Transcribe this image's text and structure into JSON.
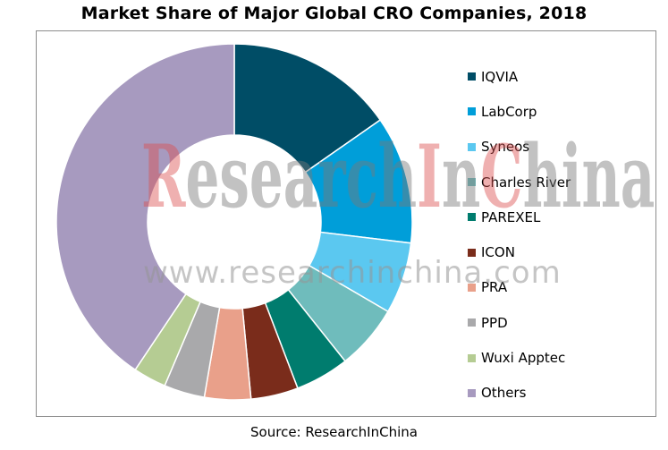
{
  "chart_data": {
    "type": "pie",
    "variant": "donut",
    "title": "Market Share of Major Global CRO Companies, 2018",
    "labels": [
      "IQVIA",
      "LabCorp",
      "Syneos",
      "Charles River",
      "PAREXEL",
      "ICON",
      "PRA",
      "PPD",
      "Wuxi Apptec",
      "Others"
    ],
    "values": [
      15.3,
      11.6,
      6.5,
      5.9,
      4.9,
      4.3,
      4.2,
      3.7,
      3.0,
      40.6
    ],
    "colors": [
      "#004d66",
      "#009ed9",
      "#5bc8f0",
      "#6fbcbc",
      "#007c6e",
      "#7a2c1b",
      "#e9a08a",
      "#a9a9ab",
      "#b5cc93",
      "#a79abf"
    ],
    "legend_position": "right"
  },
  "watermark": {
    "logo_text": "ResearchInChina",
    "url_text": "www.researchinchina.com"
  },
  "source": "Source: ResearchInChina"
}
